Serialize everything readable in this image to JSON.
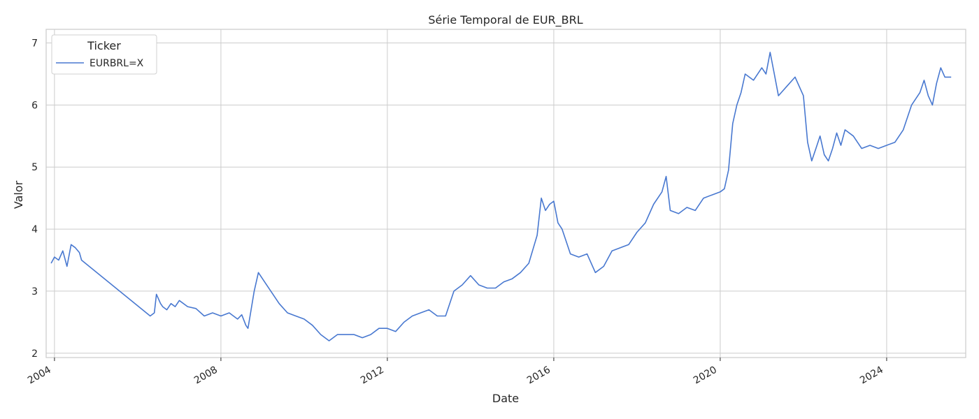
{
  "chart_data": {
    "type": "line",
    "title": "Série Temporal de EUR_BRL",
    "xlabel": "Date",
    "ylabel": "Valor",
    "x_ticks": [
      "2004",
      "2008",
      "2012",
      "2016",
      "2020",
      "2024"
    ],
    "y_ticks": [
      "2",
      "3",
      "4",
      "5",
      "6",
      "7"
    ],
    "xlim": [
      2003.8,
      2025.9
    ],
    "ylim": [
      1.93,
      7.22
    ],
    "grid": true,
    "legend": {
      "title": "Ticker",
      "placement": "top-left"
    },
    "colors": {
      "series": "#4878d0"
    },
    "series": [
      {
        "name": "EURBRL=X",
        "x": [
          2003.92,
          2004.0,
          2004.1,
          2004.2,
          2004.3,
          2004.4,
          2004.5,
          2004.6,
          2004.65,
          2006.3,
          2006.4,
          2006.45,
          2006.55,
          2006.6,
          2006.7,
          2006.8,
          2006.9,
          2007.0,
          2007.2,
          2007.4,
          2007.6,
          2007.8,
          2008.0,
          2008.2,
          2008.4,
          2008.5,
          2008.6,
          2008.65,
          2008.7,
          2008.8,
          2008.9,
          2009.0,
          2009.2,
          2009.4,
          2009.6,
          2009.8,
          2010.0,
          2010.2,
          2010.4,
          2010.6,
          2010.8,
          2011.0,
          2011.2,
          2011.4,
          2011.6,
          2011.8,
          2012.0,
          2012.2,
          2012.4,
          2012.6,
          2012.8,
          2013.0,
          2013.2,
          2013.4,
          2013.6,
          2013.8,
          2014.0,
          2014.2,
          2014.4,
          2014.6,
          2014.8,
          2015.0,
          2015.2,
          2015.4,
          2015.6,
          2015.7,
          2015.8,
          2015.9,
          2016.0,
          2016.1,
          2016.2,
          2016.4,
          2016.6,
          2016.8,
          2017.0,
          2017.2,
          2017.4,
          2017.6,
          2017.8,
          2018.0,
          2018.2,
          2018.4,
          2018.6,
          2018.7,
          2018.8,
          2019.0,
          2019.2,
          2019.4,
          2019.6,
          2019.8,
          2020.0,
          2020.1,
          2020.2,
          2020.3,
          2020.4,
          2020.5,
          2020.6,
          2020.8,
          2021.0,
          2021.1,
          2021.2,
          2021.3,
          2021.4,
          2021.6,
          2021.8,
          2022.0,
          2022.1,
          2022.2,
          2022.3,
          2022.4,
          2022.5,
          2022.6,
          2022.7,
          2022.8,
          2022.9,
          2023.0,
          2023.2,
          2023.4,
          2023.6,
          2023.8,
          2024.0,
          2024.2,
          2024.4,
          2024.6,
          2024.8,
          2024.9,
          2025.0,
          2025.1,
          2025.2,
          2025.3,
          2025.4,
          2025.55
        ],
        "values": [
          3.45,
          3.55,
          3.5,
          3.65,
          3.4,
          3.75,
          3.7,
          3.62,
          3.5,
          2.6,
          2.65,
          2.95,
          2.8,
          2.75,
          2.7,
          2.8,
          2.75,
          2.85,
          2.75,
          2.72,
          2.6,
          2.65,
          2.6,
          2.65,
          2.55,
          2.62,
          2.45,
          2.4,
          2.6,
          3.0,
          3.3,
          3.2,
          3.0,
          2.8,
          2.65,
          2.6,
          2.55,
          2.45,
          2.3,
          2.2,
          2.3,
          2.3,
          2.3,
          2.25,
          2.3,
          2.4,
          2.4,
          2.35,
          2.5,
          2.6,
          2.65,
          2.7,
          2.6,
          2.6,
          3.0,
          3.1,
          3.25,
          3.1,
          3.05,
          3.05,
          3.15,
          3.2,
          3.3,
          3.45,
          3.9,
          4.5,
          4.3,
          4.4,
          4.45,
          4.1,
          4.0,
          3.6,
          3.55,
          3.6,
          3.3,
          3.4,
          3.65,
          3.7,
          3.75,
          3.95,
          4.1,
          4.4,
          4.6,
          4.85,
          4.3,
          4.25,
          4.35,
          4.3,
          4.5,
          4.55,
          4.6,
          4.65,
          4.95,
          5.7,
          6.0,
          6.2,
          6.5,
          6.4,
          6.6,
          6.5,
          6.85,
          6.5,
          6.15,
          6.3,
          6.45,
          6.15,
          5.4,
          5.1,
          5.3,
          5.5,
          5.2,
          5.1,
          5.3,
          5.55,
          5.35,
          5.6,
          5.5,
          5.3,
          5.35,
          5.3,
          5.35,
          5.4,
          5.6,
          6.0,
          6.2,
          6.4,
          6.15,
          6.0,
          6.35,
          6.6,
          6.45,
          6.45
        ]
      }
    ]
  }
}
